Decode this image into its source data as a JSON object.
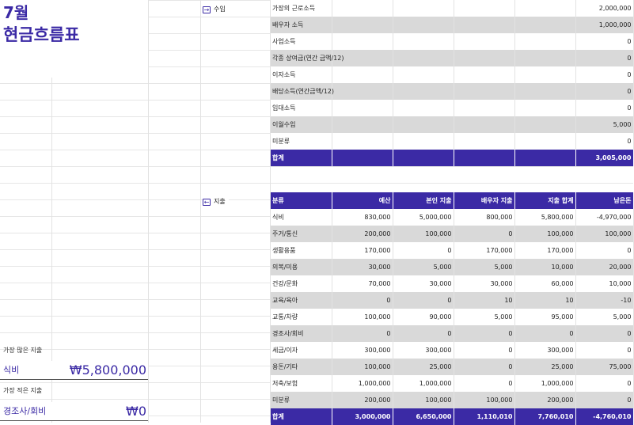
{
  "header": {
    "month": "7월",
    "title": "현금흐름표"
  },
  "summary": {
    "most_label": "가장 많은 지출",
    "most_category": "식비",
    "most_value": "₩5,800,000",
    "least_label": "가장 적은 지출",
    "least_category": "경조사/회비",
    "least_value": "₩0"
  },
  "income": {
    "section_label": "수입",
    "rows": [
      {
        "label": "가장의 근로소득",
        "value": "2,000,000"
      },
      {
        "label": "배우자 소득",
        "value": "1,000,000"
      },
      {
        "label": "사업소득",
        "value": "0"
      },
      {
        "label": "각종 상여금(연간 금액/12)",
        "value": "0"
      },
      {
        "label": "이자소득",
        "value": "0"
      },
      {
        "label": "배당소득(연간금액/12)",
        "value": "0"
      },
      {
        "label": "임대소득",
        "value": "0"
      },
      {
        "label": "이월수입",
        "value": "5,000"
      },
      {
        "label": "미분류",
        "value": "0"
      }
    ],
    "total": {
      "label": "합계",
      "value": "3,005,000"
    }
  },
  "expense": {
    "section_label": "지출",
    "headers": [
      "분류",
      "예산",
      "본인 지출",
      "배우자 지출",
      "지출 합계",
      "남은돈"
    ],
    "rows": [
      [
        "식비",
        "830,000",
        "5,000,000",
        "800,000",
        "5,800,000",
        "-4,970,000"
      ],
      [
        "주거/통신",
        "200,000",
        "100,000",
        "0",
        "100,000",
        "100,000"
      ],
      [
        "생활용품",
        "170,000",
        "0",
        "170,000",
        "170,000",
        "0"
      ],
      [
        "의복/미용",
        "30,000",
        "5,000",
        "5,000",
        "10,000",
        "20,000"
      ],
      [
        "건강/문화",
        "70,000",
        "30,000",
        "30,000",
        "60,000",
        "10,000"
      ],
      [
        "교육/육아",
        "0",
        "0",
        "10",
        "10",
        "-10"
      ],
      [
        "교통/차량",
        "100,000",
        "90,000",
        "5,000",
        "95,000",
        "5,000"
      ],
      [
        "경조사/회비",
        "0",
        "0",
        "0",
        "0",
        "0"
      ],
      [
        "세금/이자",
        "300,000",
        "300,000",
        "0",
        "300,000",
        "0"
      ],
      [
        "용돈/기타",
        "100,000",
        "25,000",
        "0",
        "25,000",
        "75,000"
      ],
      [
        "저축/보험",
        "1,000,000",
        "1,000,000",
        "0",
        "1,000,000",
        "0"
      ],
      [
        "미분류",
        "200,000",
        "100,000",
        "100,000",
        "200,000",
        "0"
      ]
    ],
    "total": [
      "합계",
      "3,000,000",
      "6,650,000",
      "1,110,010",
      "7,760,010",
      "-4,760,010"
    ]
  }
}
